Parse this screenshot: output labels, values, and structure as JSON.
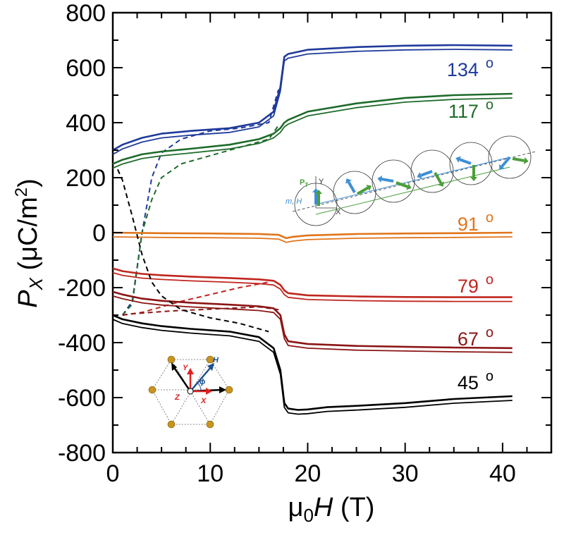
{
  "chart_data": {
    "type": "line",
    "title": "",
    "xlabel_parts": {
      "mu": "μ",
      "sub": "0",
      "var": "H",
      "unit": " (T)"
    },
    "ylabel_parts": {
      "var": "P",
      "sub": "X",
      "unit_open": " (μC/m",
      "sup": "2",
      "unit_close": ")"
    },
    "xlim": [
      0,
      45
    ],
    "ylim": [
      -800,
      800
    ],
    "x_ticks": [
      0,
      10,
      20,
      30,
      40
    ],
    "x_tick_labels": [
      "0",
      "10",
      "20",
      "30",
      "40"
    ],
    "y_ticks": [
      800,
      600,
      400,
      200,
      0,
      -200,
      -400,
      -600,
      -800
    ],
    "y_tick_labels": [
      "800",
      "600",
      "400",
      "200",
      "0",
      "-200",
      "-400",
      "-600",
      "-800"
    ],
    "series": [
      {
        "name": "134 o",
        "label_text": "134",
        "color": "#1f3a9b",
        "x": [
          0,
          1,
          3,
          5,
          8,
          12,
          15,
          16.5,
          17.2,
          17.6,
          18,
          20,
          25,
          30,
          35,
          41
        ],
        "values": [
          300,
          320,
          345,
          360,
          370,
          380,
          400,
          440,
          530,
          640,
          650,
          665,
          675,
          680,
          682,
          680
        ],
        "dashed_x": [
          1,
          2,
          3,
          4,
          5,
          7,
          10,
          13,
          16,
          17
        ],
        "dashed_values": [
          -300,
          -250,
          0,
          200,
          290,
          340,
          370,
          380,
          400,
          520
        ]
      },
      {
        "name": "117 o",
        "label_text": "117",
        "color": "#1e6b2a",
        "x": [
          0,
          1,
          3,
          5,
          8,
          12,
          15,
          16.5,
          17.2,
          17.6,
          18,
          20,
          25,
          30,
          35,
          41
        ],
        "values": [
          250,
          265,
          285,
          295,
          305,
          320,
          340,
          360,
          380,
          400,
          410,
          440,
          470,
          490,
          500,
          505
        ],
        "dashed_x": [
          1,
          2,
          3,
          4,
          5,
          7,
          10,
          13,
          16,
          17
        ],
        "dashed_values": [
          -300,
          -260,
          0,
          120,
          200,
          250,
          280,
          310,
          340,
          390
        ]
      },
      {
        "name": "91 o",
        "label_text": "91",
        "color": "#e0751b",
        "x": [
          0,
          5,
          10,
          15,
          17,
          17.8,
          18.5,
          20,
          25,
          30,
          35,
          41
        ],
        "values": [
          0,
          -2,
          -3,
          -5,
          -8,
          -20,
          -15,
          -10,
          -5,
          -3,
          -2,
          0
        ],
        "dashed_x": [],
        "dashed_values": []
      },
      {
        "name": "79 o",
        "label_text": "79",
        "color": "#c0261f",
        "x": [
          0,
          1,
          3,
          5,
          8,
          12,
          15,
          16.5,
          17.2,
          17.6,
          18,
          20,
          25,
          30,
          35,
          41
        ],
        "values": [
          -130,
          -140,
          -150,
          -155,
          -160,
          -165,
          -170,
          -175,
          -190,
          -210,
          -220,
          -228,
          -232,
          -234,
          -235,
          -235
        ],
        "dashed_x": [
          1,
          2,
          3,
          5,
          7,
          10,
          13,
          16
        ],
        "dashed_values": [
          -300,
          -295,
          -290,
          -270,
          -250,
          -225,
          -200,
          -180
        ]
      },
      {
        "name": "67 o",
        "label_text": "67",
        "color": "#8b1515",
        "x": [
          0,
          1,
          3,
          5,
          8,
          12,
          15,
          16.5,
          17.2,
          17.6,
          18,
          20,
          25,
          30,
          35,
          41
        ],
        "values": [
          -215,
          -225,
          -240,
          -248,
          -255,
          -262,
          -268,
          -275,
          -300,
          -370,
          -395,
          -405,
          -412,
          -415,
          -418,
          -420
        ],
        "dashed_x": [
          1,
          2,
          4,
          6,
          9,
          12,
          15,
          17
        ],
        "dashed_values": [
          -300,
          -295,
          -290,
          -285,
          -280,
          -275,
          -270,
          -280
        ]
      },
      {
        "name": "45 o",
        "label_text": "45",
        "color": "#000000",
        "x": [
          0,
          1,
          3,
          5,
          8,
          12,
          15,
          16.5,
          17.2,
          17.6,
          18,
          19,
          20,
          22,
          25,
          30,
          35,
          41
        ],
        "values": [
          -300,
          -315,
          -330,
          -340,
          -350,
          -360,
          -380,
          -420,
          -500,
          -620,
          -640,
          -645,
          -643,
          -635,
          -630,
          -620,
          -605,
          -595
        ],
        "dashed_x": [
          0.5,
          1,
          2,
          3,
          4,
          5,
          7,
          10,
          13,
          16
        ],
        "dashed_values": [
          230,
          190,
          60,
          -80,
          -180,
          -230,
          -280,
          -310,
          -330,
          -360
        ]
      }
    ],
    "degree_symbol": "o",
    "inset_spin": {
      "p_label": "P",
      "p_sub": "T",
      "y_label": "Y",
      "x_label": "X",
      "mh_label": "m, H"
    },
    "inset_lattice": {
      "labels": [
        "Y",
        "H",
        "ϕ",
        "Z",
        "X"
      ]
    },
    "colors": {
      "axis": "#000000",
      "inset_blue": "#3d8fd6",
      "inset_green": "#4a9e3a",
      "lattice_atom": "#c8941e",
      "lattice_red": "#e02020",
      "lattice_darkblue": "#1f4f8f"
    }
  }
}
